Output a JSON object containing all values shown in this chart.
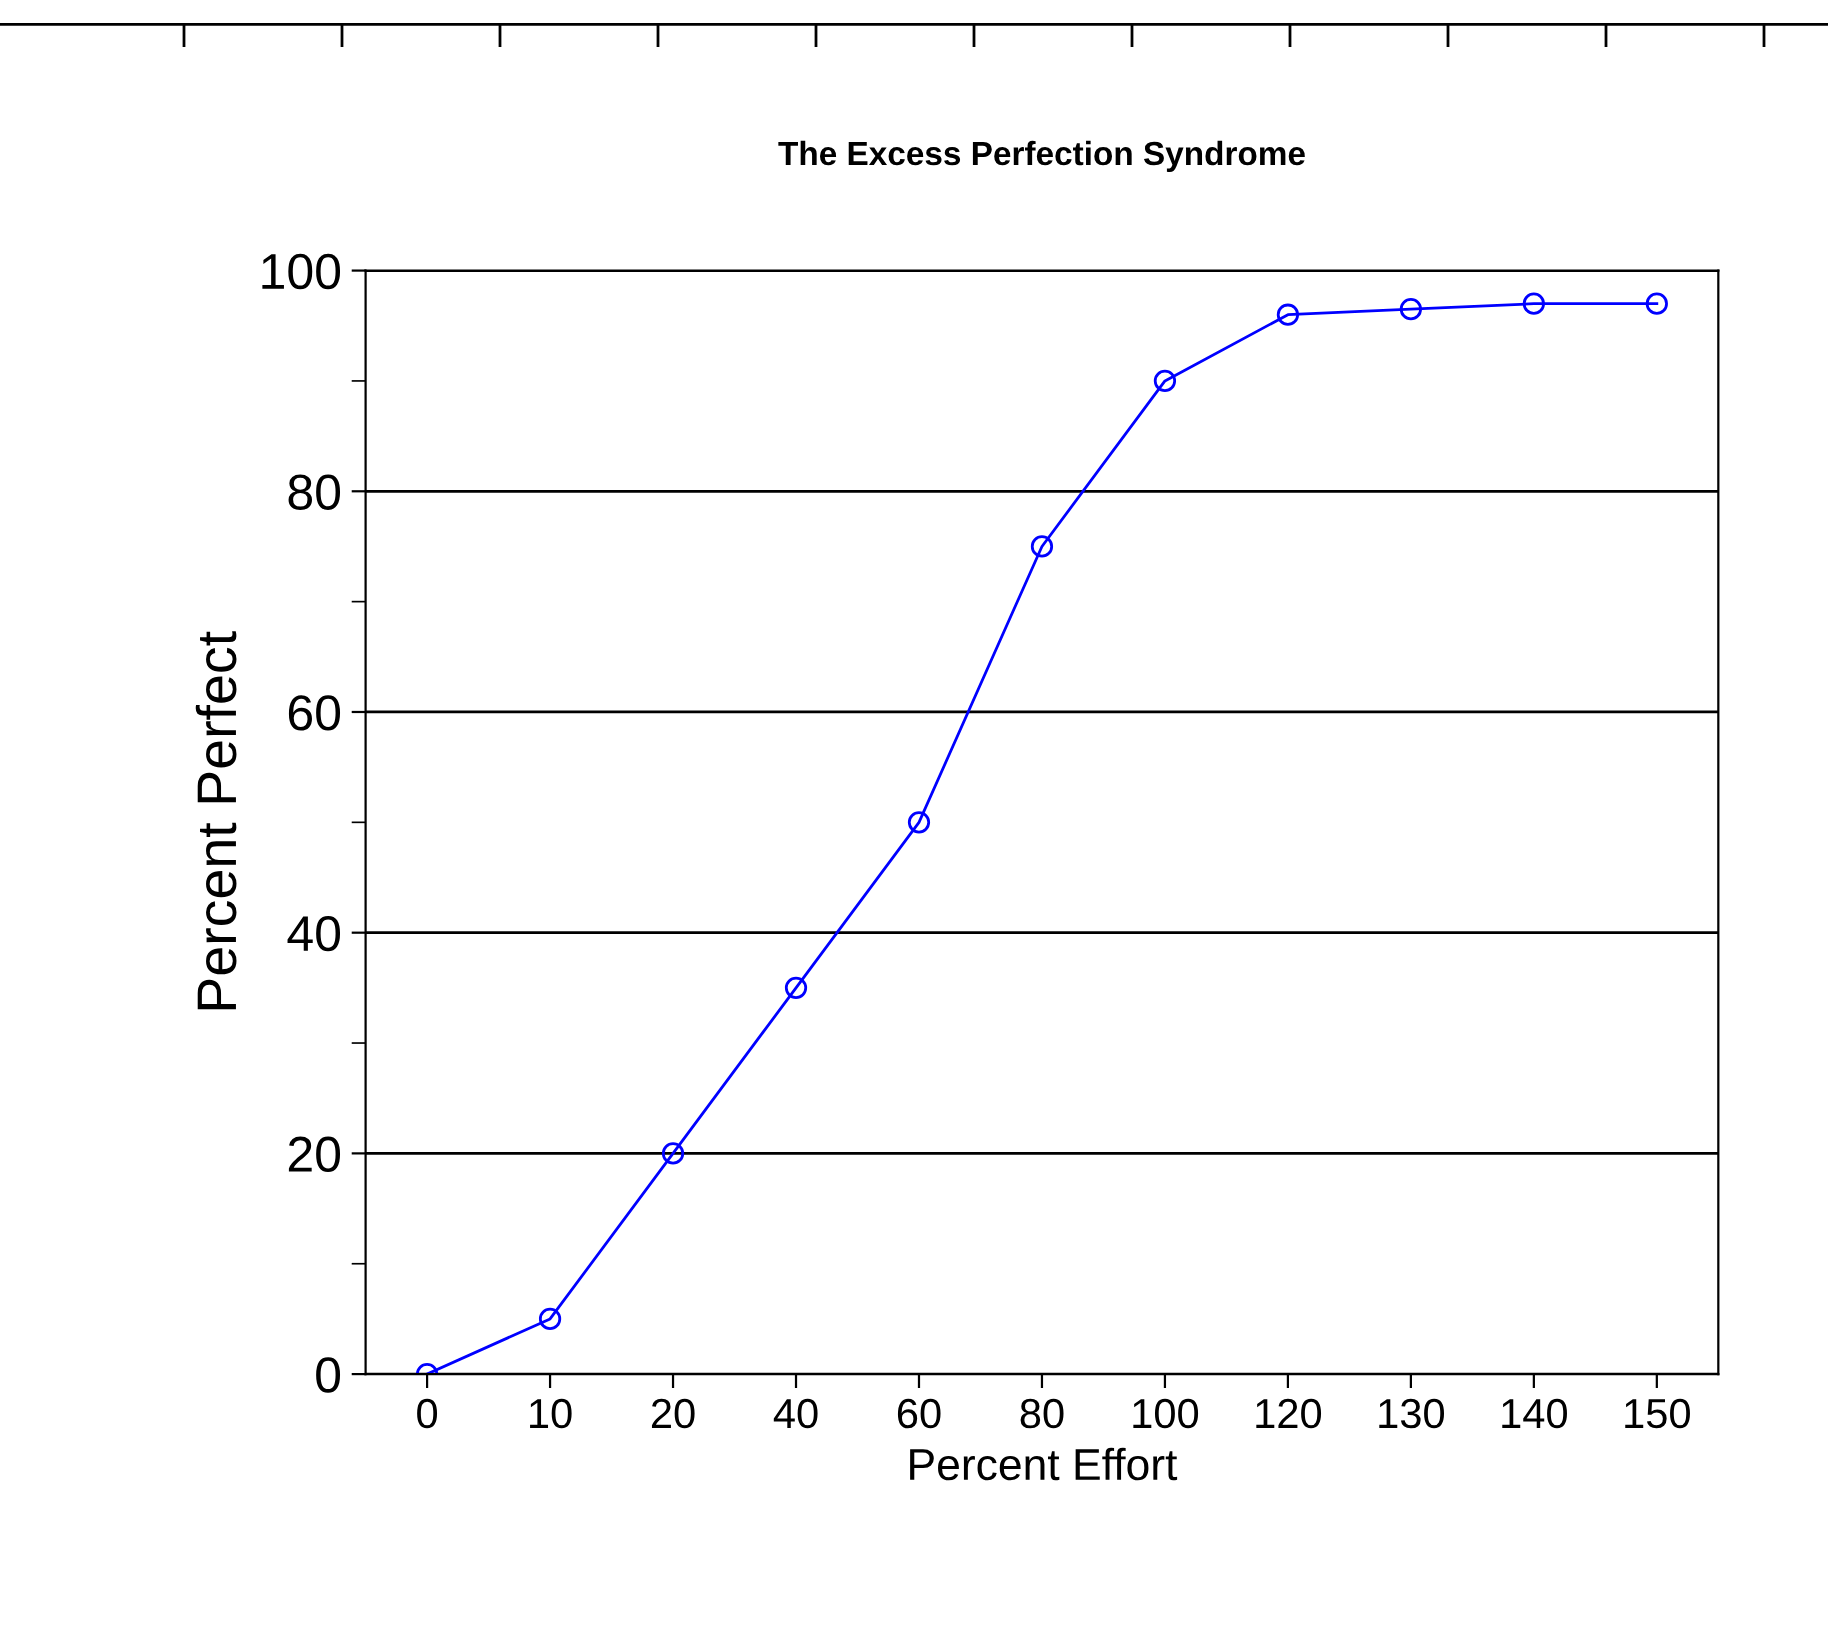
{
  "chart_data": {
    "type": "line",
    "title": "The Excess Perfection Syndrome",
    "xlabel": "Percent Effort",
    "ylabel": "Percent Perfect",
    "categories": [
      "0",
      "10",
      "20",
      "40",
      "60",
      "80",
      "100",
      "120",
      "130",
      "140",
      "150"
    ],
    "series": [
      {
        "color": "#0000ff",
        "values": [
          0,
          5,
          20,
          35,
          50,
          75,
          90,
          96,
          96.5,
          97,
          97
        ]
      }
    ],
    "ylim": [
      0,
      100
    ],
    "yticks": [
      0,
      {
        "value": 10,
        "label": null
      },
      20,
      {
        "value": 30,
        "label": null
      },
      40,
      {
        "value": 50,
        "label": null
      },
      60,
      {
        "value": 70,
        "label": null
      },
      80,
      {
        "value": 90,
        "label": null
      },
      100
    ],
    "grid": "y",
    "marker": "circle",
    "line_style": "solid"
  }
}
